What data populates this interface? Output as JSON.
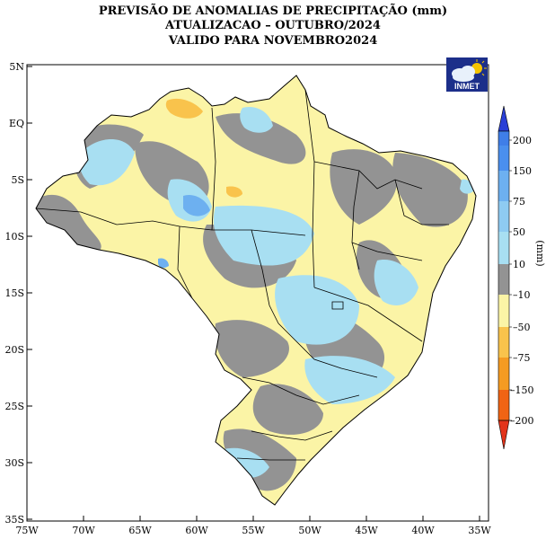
{
  "header": {
    "line1": "PREVISÃO DE ANOMALIAS DE PRECIPITAÇÃO (mm)",
    "line2": "ATUALIZACAO – OUTUBRO/2024",
    "line3": "VALIDO PARA NOVEMBRO2024"
  },
  "logo": {
    "text": "INMET",
    "icon": "cloud-sun-icon"
  },
  "map": {
    "lat_ticks": [
      "5N",
      "EQ",
      "5S",
      "10S",
      "15S",
      "20S",
      "25S",
      "30S",
      "35S"
    ],
    "lon_ticks": [
      "75W",
      "70W",
      "65W",
      "60W",
      "55W",
      "50W",
      "45W",
      "40W",
      "35W"
    ]
  },
  "colorbar": {
    "unit": "(mm)",
    "labels": [
      "200",
      "150",
      "75",
      "50",
      "10",
      "–10",
      "–50",
      "–75",
      "–150",
      "–200"
    ],
    "colors": {
      "c200": "#2a3fd6",
      "c150": "#3f7ee8",
      "c75": "#6db0f0",
      "c50": "#a8dff2",
      "c10": "#a8dff2",
      "neutral": "#939393",
      "m10": "#fbf4a6",
      "m50": "#f9c34c",
      "m75": "#f59b22",
      "m150": "#f06414",
      "m200": "#e2331a"
    }
  }
}
